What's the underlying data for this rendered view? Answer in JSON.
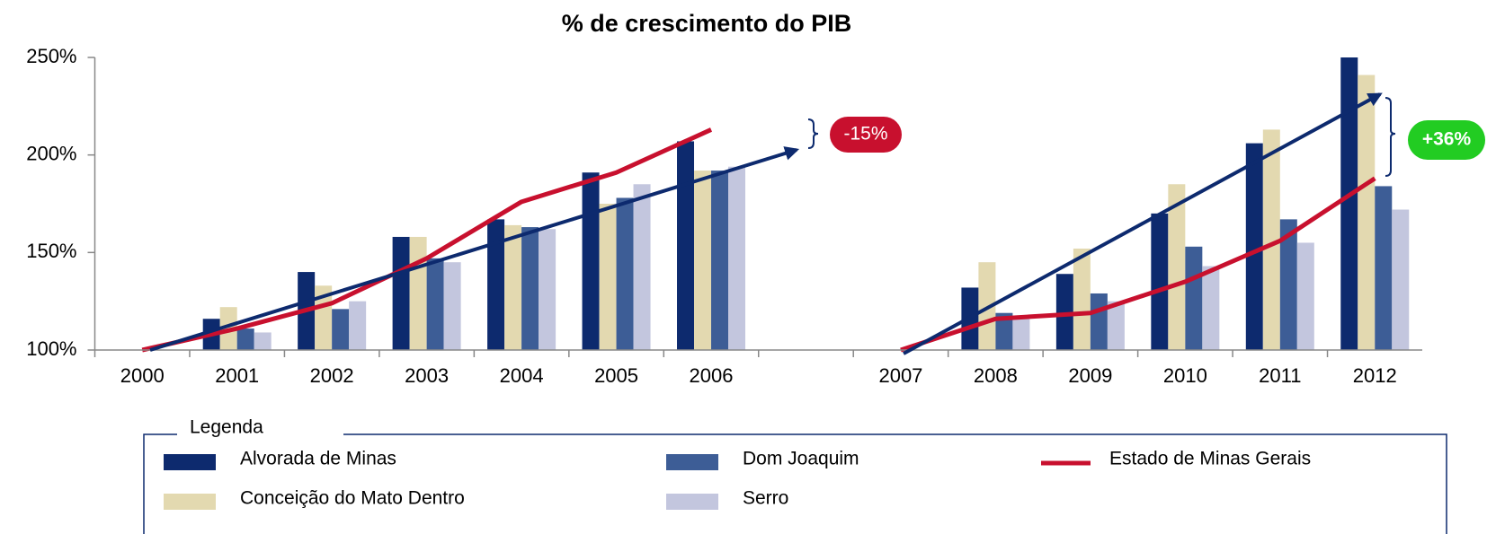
{
  "chart_data": {
    "type": "bar",
    "title": "% de crescimento do PIB",
    "categories": [
      "2000",
      "2001",
      "2002",
      "2003",
      "2004",
      "2005",
      "2006",
      null,
      "2007",
      "2008",
      "2009",
      "2010",
      "2011",
      "2012"
    ],
    "series": [
      {
        "name": "Alvorada de Minas",
        "color": "#0d2a6e",
        "values": [
          null,
          116,
          140,
          158,
          167,
          191,
          207,
          null,
          null,
          132,
          139,
          170,
          206,
          250
        ]
      },
      {
        "name": "Conceição do Mato Dentro",
        "color": "#e3d9b0",
        "values": [
          null,
          122,
          133,
          158,
          164,
          175,
          192,
          null,
          null,
          145,
          152,
          185,
          213,
          241
        ]
      },
      {
        "name": "Dom Joaquim",
        "color": "#3d5d96",
        "values": [
          null,
          111,
          121,
          147,
          163,
          178,
          192,
          null,
          null,
          119,
          129,
          153,
          167,
          184
        ]
      },
      {
        "name": "Serro",
        "color": "#c3c6de",
        "values": [
          null,
          109,
          125,
          145,
          162,
          185,
          194,
          null,
          null,
          117,
          125,
          143,
          155,
          172
        ]
      },
      {
        "name": "Estado de Minas Gerais",
        "type": "line",
        "color": "#c8102e",
        "values": [
          100,
          111,
          124,
          147,
          176,
          191,
          213,
          null,
          100,
          116,
          119,
          135,
          156,
          188
        ]
      }
    ],
    "ylim": [
      100,
      250
    ],
    "yticks": [
      {
        "value": 100,
        "label": "100%"
      },
      {
        "value": 150,
        "label": "150%"
      },
      {
        "value": 200,
        "label": "200%"
      },
      {
        "value": 250,
        "label": "250%"
      }
    ],
    "legend_title": "Legenda",
    "annotations": [
      "-15%",
      "+36%"
    ]
  }
}
